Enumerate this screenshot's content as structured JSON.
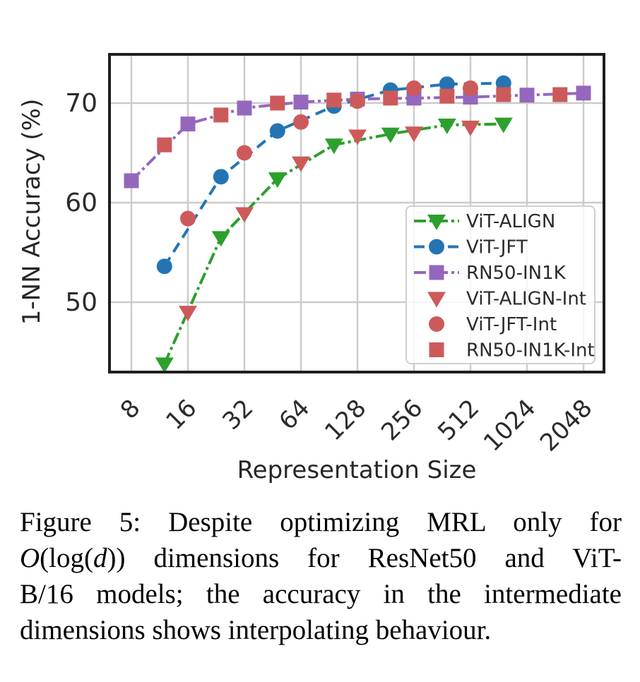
{
  "chart_data": {
    "type": "line",
    "title": "",
    "xlabel": "Representation Size",
    "ylabel": "1-NN Accuracy (%)",
    "x_scale": "log2",
    "xlim": [
      6,
      2650
    ],
    "ylim": [
      43,
      75
    ],
    "x_ticks": [
      8,
      16,
      32,
      64,
      128,
      256,
      512,
      1024,
      2048
    ],
    "y_ticks": [
      50,
      60,
      70
    ],
    "grid": true,
    "legend_position": "lower right",
    "series": [
      {
        "name": "ViT-ALIGN",
        "color": "#2ca02c",
        "marker": "triangle-down",
        "line": "dashdot",
        "x": [
          12,
          24,
          48,
          96,
          192,
          384,
          768
        ],
        "y": [
          43.8,
          56.5,
          62.4,
          65.8,
          66.9,
          67.8,
          67.9
        ]
      },
      {
        "name": "ViT-JFT",
        "color": "#2474b4",
        "marker": "circle",
        "line": "dashed",
        "x": [
          12,
          24,
          48,
          96,
          192,
          384,
          768
        ],
        "y": [
          53.6,
          62.6,
          67.2,
          69.7,
          71.3,
          71.9,
          72.0
        ]
      },
      {
        "name": "RN50-IN1K",
        "color": "#9467bd",
        "marker": "square",
        "line": "dashdot",
        "x": [
          8,
          16,
          32,
          64,
          128,
          256,
          512,
          1024,
          2048
        ],
        "y": [
          62.2,
          67.9,
          69.5,
          70.1,
          70.4,
          70.5,
          70.6,
          70.8,
          71.0
        ]
      },
      {
        "name": "ViT-ALIGN-Int",
        "color": "#cd5a5a",
        "marker": "triangle-down",
        "line": "none",
        "x": [
          16,
          32,
          64,
          128,
          256,
          512
        ],
        "y": [
          49.0,
          58.9,
          64.0,
          66.7,
          67.0,
          67.6
        ]
      },
      {
        "name": "ViT-JFT-Int",
        "color": "#cd5a5a",
        "marker": "circle",
        "line": "none",
        "x": [
          16,
          32,
          64,
          128,
          256,
          512
        ],
        "y": [
          58.4,
          65.0,
          68.1,
          70.2,
          71.5,
          71.5
        ]
      },
      {
        "name": "RN50-IN1K-Int",
        "color": "#cd5a5a",
        "marker": "square",
        "line": "none",
        "x": [
          12,
          24,
          48,
          96,
          192,
          384,
          768,
          1536
        ],
        "y": [
          65.8,
          68.8,
          70.0,
          70.3,
          70.5,
          70.7,
          70.85,
          70.85
        ]
      }
    ]
  },
  "caption": {
    "lines": [
      [
        {
          "text": "Figure 5:  Despite optimizing MRL only for",
          "italic": false
        }
      ],
      [
        {
          "text": "O",
          "italic": true
        },
        {
          "text": "(log(",
          "italic": false
        },
        {
          "text": "d",
          "italic": true
        },
        {
          "text": ")) dimensions for ResNet50 and ViT-",
          "italic": false
        }
      ],
      [
        {
          "text": "B/16 models; the accuracy in the intermediate",
          "italic": false
        }
      ],
      [
        {
          "text": "dimensions shows interpolating behaviour.",
          "italic": false
        }
      ]
    ]
  }
}
